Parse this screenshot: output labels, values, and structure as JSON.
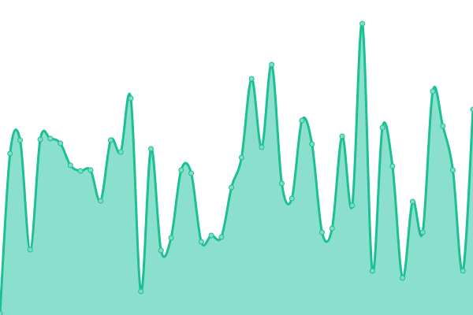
{
  "chart_data": {
    "type": "area",
    "title": "",
    "xlabel": "",
    "ylabel": "",
    "grid": false,
    "legend": "none",
    "ylim": [
      0,
      400
    ],
    "x": [
      0,
      1,
      2,
      3,
      4,
      5,
      6,
      7,
      8,
      9,
      10,
      11,
      12,
      13,
      14,
      15,
      16,
      17,
      18,
      19,
      20,
      21,
      22,
      23,
      24,
      25,
      26,
      27,
      28,
      29,
      30,
      31,
      32,
      33,
      34,
      35,
      36,
      37,
      38,
      39,
      40,
      41,
      42,
      43,
      44,
      45,
      46,
      47
    ],
    "values": [
      2,
      205,
      222,
      83,
      223,
      224,
      218,
      190,
      183,
      184,
      145,
      222,
      207,
      275,
      30,
      211,
      82,
      98,
      184,
      180,
      93,
      101,
      99,
      162,
      200,
      300,
      213,
      318,
      167,
      148,
      247,
      217,
      105,
      110,
      227,
      139,
      370,
      56,
      238,
      189,
      47,
      144,
      105,
      284,
      240,
      184,
      56,
      261
    ],
    "colors": {
      "line": "#1dbf95",
      "fill": "#8ae0cd",
      "point": "#7fdcc5"
    }
  }
}
